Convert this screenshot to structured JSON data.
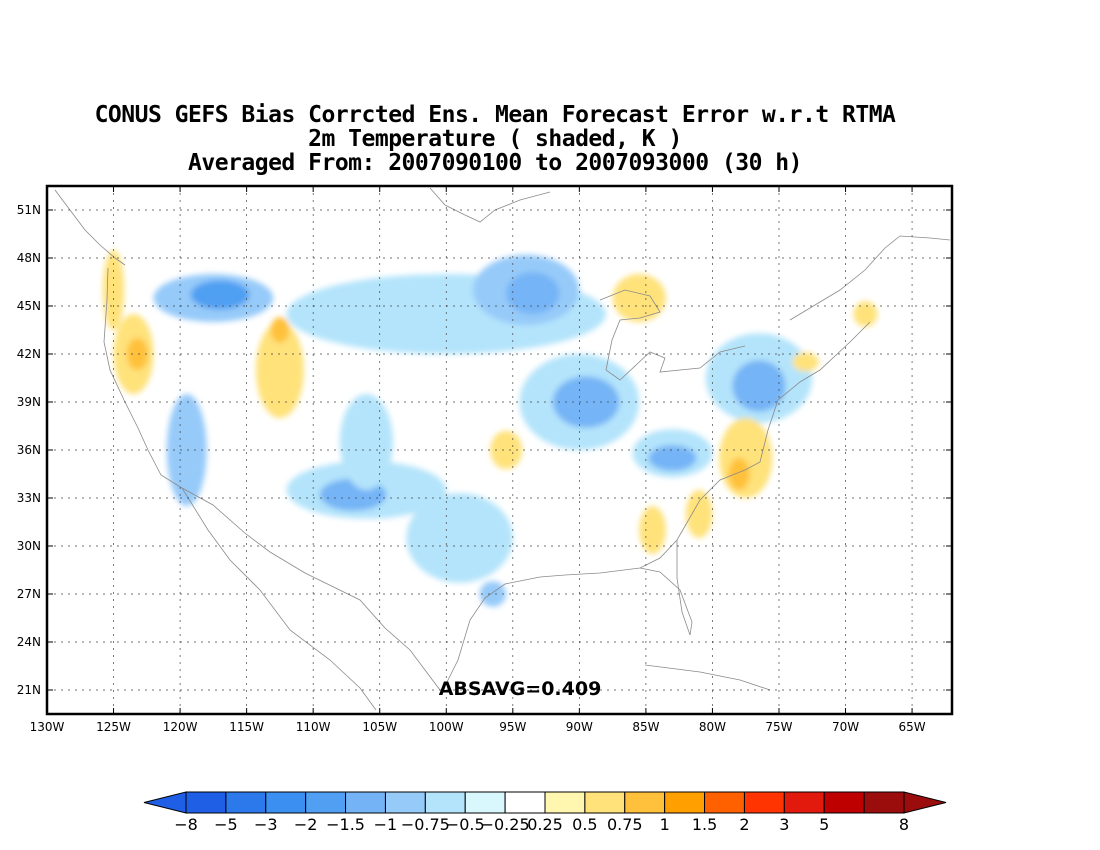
{
  "title": {
    "line1": "CONUS GEFS Bias Corrcted Ens. Mean Forecast Error w.r.t RTMA",
    "line2": "2m Temperature ( shaded, K )",
    "line3": "Averaged From: 2007090100 to 2007093000 (30 h)"
  },
  "map": {
    "lat_labels": [
      "51N",
      "48N",
      "45N",
      "42N",
      "39N",
      "36N",
      "33N",
      "30N",
      "27N",
      "24N",
      "21N"
    ],
    "lon_labels": [
      "130W",
      "125W",
      "120W",
      "115W",
      "110W",
      "105W",
      "100W",
      "95W",
      "90W",
      "85W",
      "80W",
      "75W",
      "70W",
      "65W"
    ],
    "lat_range": [
      19.5,
      52.5
    ],
    "lon_range": [
      -130,
      -62
    ],
    "grid": true,
    "absavg": "ABSAVG=0.409"
  },
  "colorbar": {
    "labels": [
      "-8",
      "-5",
      "-3",
      "-2",
      "-1.5",
      "-1",
      "-0.75",
      "-0.5",
      "-0.25",
      "0.25",
      "0.5",
      "0.75",
      "1",
      "1.5",
      "2",
      "3",
      "5",
      "8"
    ],
    "colors": [
      "#1e5fe6",
      "#2b79eb",
      "#3b8ff0",
      "#509ff2",
      "#74b4f6",
      "#96caf9",
      "#b4e4fb",
      "#d8f8fe",
      "#ffffff",
      "#fff7b0",
      "#ffe27a",
      "#ffc13b",
      "#ffa000",
      "#ff6000",
      "#ff3400",
      "#e11a0d",
      "#be0000",
      "#9b0d0d"
    ]
  },
  "regions": [
    {
      "color": "#96caf9",
      "lon": -117.5,
      "lat": 45.5,
      "rx": 4.5,
      "ry": 1.5
    },
    {
      "color": "#509ff2",
      "lon": -117,
      "lat": 45.7,
      "rx": 2.2,
      "ry": 0.9
    },
    {
      "color": "#b4e4fb",
      "lon": -100,
      "lat": 44.5,
      "rx": 12,
      "ry": 2.5
    },
    {
      "color": "#96caf9",
      "lon": -94,
      "lat": 46,
      "rx": 4,
      "ry": 2.2
    },
    {
      "color": "#74b4f6",
      "lon": -93.5,
      "lat": 45.8,
      "rx": 2,
      "ry": 1.3
    },
    {
      "color": "#b4e4fb",
      "lon": -90,
      "lat": 39,
      "rx": 4.5,
      "ry": 3
    },
    {
      "color": "#74b4f6",
      "lon": -89.5,
      "lat": 39,
      "rx": 2.5,
      "ry": 1.6
    },
    {
      "color": "#b4e4fb",
      "lon": -83,
      "lat": 35.8,
      "rx": 3,
      "ry": 1.5
    },
    {
      "color": "#74b4f6",
      "lon": -83,
      "lat": 35.5,
      "rx": 1.8,
      "ry": 0.8
    },
    {
      "color": "#b4e4fb",
      "lon": -76.5,
      "lat": 40.5,
      "rx": 4,
      "ry": 2.8
    },
    {
      "color": "#74b4f6",
      "lon": -76.5,
      "lat": 40,
      "rx": 2,
      "ry": 1.6
    },
    {
      "color": "#b4e4fb",
      "lon": -106,
      "lat": 33.5,
      "rx": 6,
      "ry": 1.8
    },
    {
      "color": "#74b4f6",
      "lon": -107,
      "lat": 33.2,
      "rx": 2.5,
      "ry": 1
    },
    {
      "color": "#b4e4fb",
      "lon": -106,
      "lat": 36.5,
      "rx": 2,
      "ry": 3
    },
    {
      "color": "#96caf9",
      "lon": -119.5,
      "lat": 36,
      "rx": 1.5,
      "ry": 3.5
    },
    {
      "color": "#b4e4fb",
      "lon": -99,
      "lat": 30.5,
      "rx": 4,
      "ry": 2.8
    },
    {
      "color": "#96caf9",
      "lon": -96.5,
      "lat": 27,
      "rx": 1,
      "ry": 0.8
    },
    {
      "color": "#ffe27a",
      "lon": -123.5,
      "lat": 42,
      "rx": 1.5,
      "ry": 2.5
    },
    {
      "color": "#ffc13b",
      "lon": -123.2,
      "lat": 42,
      "rx": 0.8,
      "ry": 1
    },
    {
      "color": "#ffe27a",
      "lon": -125,
      "lat": 46,
      "rx": 0.8,
      "ry": 2.5
    },
    {
      "color": "#ffe27a",
      "lon": -112.5,
      "lat": 41,
      "rx": 1.8,
      "ry": 3
    },
    {
      "color": "#ffc13b",
      "lon": -112.5,
      "lat": 43.5,
      "rx": 0.7,
      "ry": 0.8
    },
    {
      "color": "#ffe27a",
      "lon": -85.5,
      "lat": 45.5,
      "rx": 2,
      "ry": 1.5
    },
    {
      "color": "#ffe27a",
      "lon": -77.5,
      "lat": 35.5,
      "rx": 2,
      "ry": 2.5
    },
    {
      "color": "#ffc13b",
      "lon": -78,
      "lat": 34.5,
      "rx": 0.8,
      "ry": 1
    },
    {
      "color": "#ffe27a",
      "lon": -95.5,
      "lat": 36,
      "rx": 1.2,
      "ry": 1.2
    },
    {
      "color": "#ffe27a",
      "lon": -84.5,
      "lat": 31,
      "rx": 1,
      "ry": 1.5
    },
    {
      "color": "#ffe27a",
      "lon": -81,
      "lat": 32,
      "rx": 1,
      "ry": 1.5
    },
    {
      "color": "#ffe27a",
      "lon": -68.5,
      "lat": 44.5,
      "rx": 0.9,
      "ry": 0.8
    },
    {
      "color": "#ffe27a",
      "lon": -73,
      "lat": 41.5,
      "rx": 1,
      "ry": 0.6
    }
  ]
}
